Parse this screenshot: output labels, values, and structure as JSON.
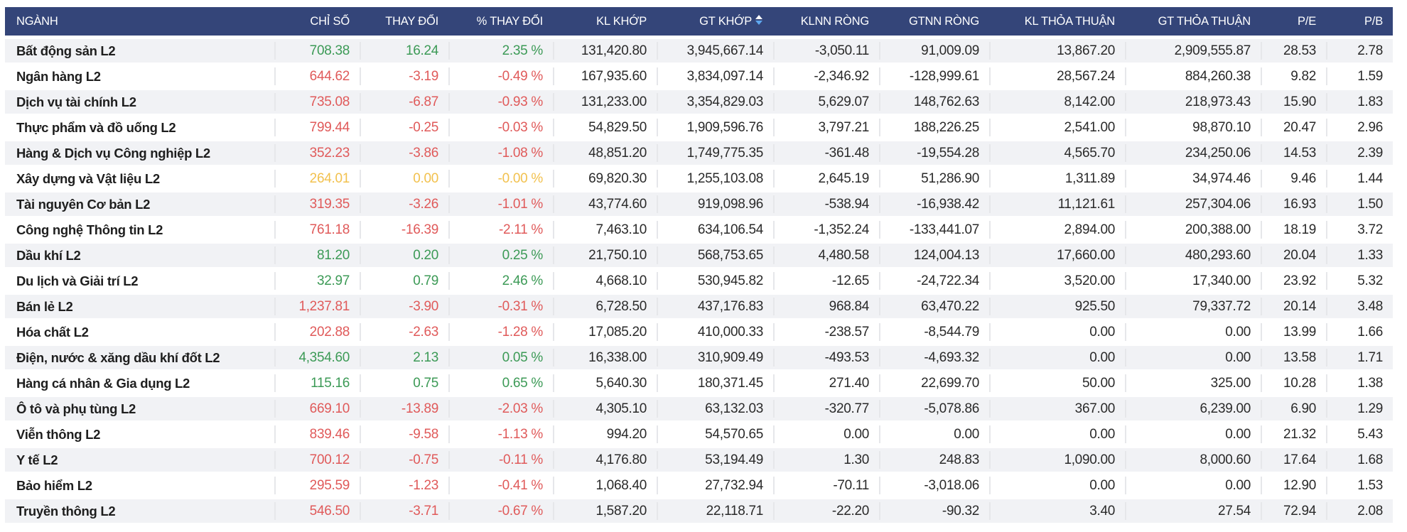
{
  "colors": {
    "header_bg": "#344579",
    "up": "#3c9a56",
    "down": "#e05a5a",
    "reference": "#f2c14e",
    "stripe": "#f1f2f5",
    "sort_active": "#5fa8f0"
  },
  "table": {
    "columns": [
      {
        "key": "nganh",
        "label": "NGÀNH"
      },
      {
        "key": "chi_so",
        "label": "CHỈ SỐ"
      },
      {
        "key": "thay_doi",
        "label": "THAY ĐỔI"
      },
      {
        "key": "pct_thay_doi",
        "label": "% THAY ĐỔI"
      },
      {
        "key": "kl_khop",
        "label": "KL KHỚP"
      },
      {
        "key": "gt_khop",
        "label": "GT KHỚP",
        "sort": "descending",
        "sort_icon": "sort-desc-icon"
      },
      {
        "key": "klnn_rong",
        "label": "KLNN RÒNG"
      },
      {
        "key": "gtnn_rong",
        "label": "GTNN RÒNG"
      },
      {
        "key": "kl_thoa_thuan",
        "label": "KL THỎA THUẬN"
      },
      {
        "key": "gt_thoa_thuan",
        "label": "GT THỎA THUẬN"
      },
      {
        "key": "pe",
        "label": "P/E"
      },
      {
        "key": "pb",
        "label": "P/B"
      }
    ],
    "rows": [
      {
        "trend": "up",
        "cells": [
          "Bất động sản L2",
          "708.38",
          "16.24",
          "2.35 %",
          "131,420.80",
          "3,945,667.14",
          "-3,050.11",
          "91,009.09",
          "13,867.20",
          "2,909,555.87",
          "28.53",
          "2.78"
        ]
      },
      {
        "trend": "down",
        "cells": [
          "Ngân hàng L2",
          "644.62",
          "-3.19",
          "-0.49 %",
          "167,935.60",
          "3,834,097.14",
          "-2,346.92",
          "-128,999.61",
          "28,567.24",
          "884,260.38",
          "9.82",
          "1.59"
        ]
      },
      {
        "trend": "down",
        "cells": [
          "Dịch vụ tài chính L2",
          "735.08",
          "-6.87",
          "-0.93 %",
          "131,233.00",
          "3,354,829.03",
          "5,629.07",
          "148,762.63",
          "8,142.00",
          "218,973.43",
          "15.90",
          "1.83"
        ]
      },
      {
        "trend": "down",
        "cells": [
          "Thực phẩm và đồ uống L2",
          "799.44",
          "-0.25",
          "-0.03 %",
          "54,829.50",
          "1,909,596.76",
          "3,797.21",
          "188,226.25",
          "2,541.00",
          "98,870.10",
          "20.47",
          "2.96"
        ]
      },
      {
        "trend": "down",
        "cells": [
          "Hàng & Dịch vụ Công nghiệp L2",
          "352.23",
          "-3.86",
          "-1.08 %",
          "48,851.20",
          "1,749,775.35",
          "-361.48",
          "-19,554.28",
          "4,565.70",
          "234,250.06",
          "14.53",
          "2.39"
        ]
      },
      {
        "trend": "ref",
        "cells": [
          "Xây dựng và Vật liệu L2",
          "264.01",
          "0.00",
          "-0.00 %",
          "69,820.30",
          "1,255,103.08",
          "2,645.19",
          "51,286.90",
          "1,311.89",
          "34,974.46",
          "9.46",
          "1.44"
        ]
      },
      {
        "trend": "down",
        "cells": [
          "Tài nguyên Cơ bản L2",
          "319.35",
          "-3.26",
          "-1.01 %",
          "43,774.60",
          "919,098.96",
          "-538.94",
          "-16,938.42",
          "11,121.61",
          "257,304.06",
          "16.93",
          "1.50"
        ]
      },
      {
        "trend": "down",
        "cells": [
          "Công nghệ Thông tin L2",
          "761.18",
          "-16.39",
          "-2.11 %",
          "7,463.10",
          "634,106.54",
          "-1,352.24",
          "-133,441.07",
          "2,894.00",
          "200,388.00",
          "18.19",
          "3.72"
        ]
      },
      {
        "trend": "up",
        "cells": [
          "Dầu khí L2",
          "81.20",
          "0.20",
          "0.25 %",
          "21,750.10",
          "568,753.65",
          "4,480.58",
          "124,004.13",
          "17,660.00",
          "480,293.60",
          "20.04",
          "1.33"
        ]
      },
      {
        "trend": "up",
        "cells": [
          "Du lịch và Giải trí L2",
          "32.97",
          "0.79",
          "2.46 %",
          "4,668.10",
          "530,945.82",
          "-12.65",
          "-24,722.34",
          "3,520.00",
          "17,340.00",
          "23.92",
          "5.32"
        ]
      },
      {
        "trend": "down",
        "cells": [
          "Bán lẻ L2",
          "1,237.81",
          "-3.90",
          "-0.31 %",
          "6,728.50",
          "437,176.83",
          "968.84",
          "63,470.22",
          "925.50",
          "79,337.72",
          "20.14",
          "3.48"
        ]
      },
      {
        "trend": "down",
        "cells": [
          "Hóa chất L2",
          "202.88",
          "-2.63",
          "-1.28 %",
          "17,085.20",
          "410,000.33",
          "-238.57",
          "-8,544.79",
          "0.00",
          "0.00",
          "13.99",
          "1.66"
        ]
      },
      {
        "trend": "up",
        "cells": [
          "Điện, nước & xăng dầu khí đốt L2",
          "4,354.60",
          "2.13",
          "0.05 %",
          "16,338.00",
          "310,909.49",
          "-493.53",
          "-4,693.32",
          "0.00",
          "0.00",
          "13.58",
          "1.71"
        ]
      },
      {
        "trend": "up",
        "cells": [
          "Hàng cá nhân & Gia dụng L2",
          "115.16",
          "0.75",
          "0.65 %",
          "5,640.30",
          "180,371.45",
          "271.40",
          "22,699.70",
          "50.00",
          "325.00",
          "10.28",
          "1.38"
        ]
      },
      {
        "trend": "down",
        "cells": [
          "Ô tô và phụ tùng L2",
          "669.10",
          "-13.89",
          "-2.03 %",
          "4,305.10",
          "63,132.03",
          "-320.77",
          "-5,078.86",
          "367.00",
          "6,239.00",
          "6.90",
          "1.29"
        ]
      },
      {
        "trend": "down",
        "cells": [
          "Viễn thông L2",
          "839.46",
          "-9.58",
          "-1.13 %",
          "994.20",
          "54,570.65",
          "0.00",
          "0.00",
          "0.00",
          "0.00",
          "21.32",
          "5.43"
        ]
      },
      {
        "trend": "down",
        "cells": [
          "Y tế L2",
          "700.12",
          "-0.75",
          "-0.11 %",
          "4,176.80",
          "53,194.49",
          "1.30",
          "248.83",
          "1,090.00",
          "8,000.60",
          "17.64",
          "1.68"
        ]
      },
      {
        "trend": "down",
        "cells": [
          "Bảo hiểm L2",
          "295.59",
          "-1.23",
          "-0.41 %",
          "1,068.40",
          "27,732.94",
          "-70.11",
          "-3,018.06",
          "0.00",
          "0.00",
          "12.90",
          "1.53"
        ]
      },
      {
        "trend": "down",
        "cells": [
          "Truyền thông L2",
          "546.50",
          "-3.71",
          "-0.67 %",
          "1,587.20",
          "22,118.71",
          "-22.20",
          "-90.32",
          "3.40",
          "27.54",
          "72.94",
          "2.08"
        ]
      }
    ]
  }
}
